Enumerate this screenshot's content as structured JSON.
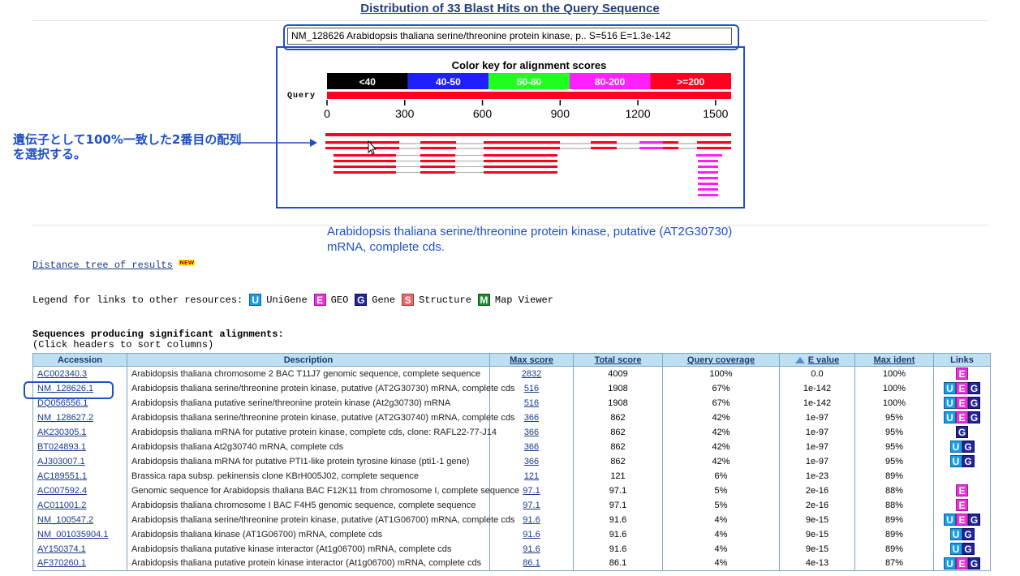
{
  "title": "Distribution of 33 Blast Hits on the Query Sequence",
  "hit_info": "NM_128626 Arabidopsis thaliana serine/threonine protein kinase, p.. S=516 E=1.3e-142",
  "color_key": {
    "title": "Color key for alignment scores",
    "bins": [
      {
        "label": "<40",
        "color": "#000000"
      },
      {
        "label": "40-50",
        "color": "#2020ff"
      },
      {
        "label": "50-80",
        "color": "#20ff20"
      },
      {
        "label": "80-200",
        "color": "#ff20ff"
      },
      {
        "label": ">=200",
        "color": "#ff0020"
      }
    ],
    "query_label": "Query",
    "scale_max": 1560,
    "ticks": [
      0,
      300,
      600,
      900,
      1200,
      1500
    ]
  },
  "annotation_jp": "遺伝子として100%一致した2番目の配列を選択する。",
  "hit_description": "Arabidopsis thaliana serine/threonine protein kinase, putative (AT2G30730) mRNA, complete cds.",
  "distance_tree": {
    "label": "Distance tree of results",
    "badge": "NEW"
  },
  "legend": {
    "label": "Legend for links to other resources:",
    "items": [
      {
        "code": "U",
        "name": "UniGene"
      },
      {
        "code": "E",
        "name": "GEO"
      },
      {
        "code": "G",
        "name": "Gene"
      },
      {
        "code": "S",
        "name": "Structure"
      },
      {
        "code": "M",
        "name": "Map Viewer"
      }
    ]
  },
  "sequences_heading": "Sequences producing significant alignments:",
  "sequences_subheading": "(Click headers to sort columns)",
  "table": {
    "columns": [
      "Accession",
      "Description",
      "Max score",
      "Total score",
      "Query coverage",
      "E value",
      "Max ident",
      "Links"
    ],
    "rows": [
      {
        "accession": "AC002340.3",
        "description": "Arabidopsis thaliana chromosome 2 BAC T11J7 genomic sequence, complete sequence",
        "max_score": "2832",
        "total_score": "4009",
        "coverage": "100%",
        "evalue": "0.0",
        "ident": "100%",
        "links": [
          "E"
        ]
      },
      {
        "accession": "NM_128626.1",
        "description": "Arabidopsis thaliana serine/threonine protein kinase, putative (AT2G30730) mRNA, complete cds",
        "max_score": "516",
        "total_score": "1908",
        "coverage": "67%",
        "evalue": "1e-142",
        "ident": "100%",
        "links": [
          "U",
          "E",
          "G"
        ]
      },
      {
        "accession": "DQ056556.1",
        "description": "Arabidopsis thaliana putative serine/threonine protein kinase (At2g30730) mRNA",
        "max_score": "516",
        "total_score": "1908",
        "coverage": "67%",
        "evalue": "1e-142",
        "ident": "100%",
        "links": [
          "U",
          "E",
          "G"
        ]
      },
      {
        "accession": "NM_128627.2",
        "description": "Arabidopsis thaliana serine/threonine protein kinase, putative (AT2G30740) mRNA, complete cds",
        "max_score": "366",
        "total_score": "862",
        "coverage": "42%",
        "evalue": "1e-97",
        "ident": "95%",
        "links": [
          "U",
          "E",
          "G"
        ]
      },
      {
        "accession": "AK230305.1",
        "description": "Arabidopsis thaliana mRNA for putative protein kinase, complete cds, clone: RAFL22-77-J14",
        "max_score": "366",
        "total_score": "862",
        "coverage": "42%",
        "evalue": "1e-97",
        "ident": "95%",
        "links": [
          "G"
        ]
      },
      {
        "accession": "BT024893.1",
        "description": "Arabidopsis thaliana At2g30740 mRNA, complete cds",
        "max_score": "366",
        "total_score": "862",
        "coverage": "42%",
        "evalue": "1e-97",
        "ident": "95%",
        "links": [
          "U",
          "G"
        ]
      },
      {
        "accession": "AJ303007.1",
        "description": "Arabidopsis thaliana mRNA for putative PTI1-like protein tyrosine kinase (pti1-1 gene)",
        "max_score": "366",
        "total_score": "862",
        "coverage": "42%",
        "evalue": "1e-97",
        "ident": "95%",
        "links": [
          "U",
          "G"
        ]
      },
      {
        "accession": "AC189551.1",
        "description": "Brassica rapa subsp. pekinensis clone KBrH005J02, complete sequence",
        "max_score": "121",
        "total_score": "121",
        "coverage": "6%",
        "evalue": "1e-23",
        "ident": "89%",
        "links": []
      },
      {
        "accession": "AC007592.4",
        "description": "Genomic sequence for Arabidopsis thaliana BAC F12K11 from chromosome I, complete sequence",
        "max_score": "97.1",
        "total_score": "97.1",
        "coverage": "5%",
        "evalue": "2e-16",
        "ident": "88%",
        "links": [
          "E"
        ]
      },
      {
        "accession": "AC011001.2",
        "description": "Arabidopsis thaliana chromosome I BAC F4H5 genomic sequence, complete sequence",
        "max_score": "97.1",
        "total_score": "97.1",
        "coverage": "5%",
        "evalue": "2e-16",
        "ident": "88%",
        "links": [
          "E"
        ]
      },
      {
        "accession": "NM_100547.2",
        "description": "Arabidopsis thaliana serine/threonine protein kinase, putative (AT1G06700) mRNA, complete cds",
        "max_score": "91.6",
        "total_score": "91.6",
        "coverage": "4%",
        "evalue": "9e-15",
        "ident": "89%",
        "links": [
          "U",
          "E",
          "G"
        ]
      },
      {
        "accession": "NM_001035904.1",
        "description": "Arabidopsis thaliana kinase (AT1G06700) mRNA, complete cds",
        "max_score": "91.6",
        "total_score": "91.6",
        "coverage": "4%",
        "evalue": "9e-15",
        "ident": "89%",
        "links": [
          "U",
          "G"
        ]
      },
      {
        "accession": "AY150374.1",
        "description": "Arabidopsis thaliana putative kinase interactor (At1g06700) mRNA, complete cds",
        "max_score": "91.6",
        "total_score": "91.6",
        "coverage": "4%",
        "evalue": "9e-15",
        "ident": "89%",
        "links": [
          "U",
          "G"
        ]
      },
      {
        "accession": "AF370260.1",
        "description": "Arabidopsis thaliana putative protein kinase interactor (At1g06700) mRNA, complete cds",
        "max_score": "86.1",
        "total_score": "86.1",
        "coverage": "4%",
        "evalue": "4e-13",
        "ident": "87%",
        "links": [
          "U",
          "E",
          "G"
        ]
      }
    ]
  }
}
